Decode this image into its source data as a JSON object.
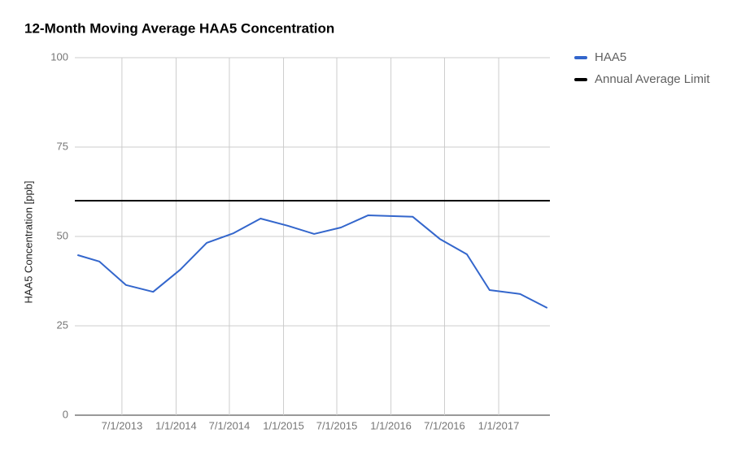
{
  "chart_data": {
    "type": "line",
    "title": "12-Month Moving Average HAA5 Concentration",
    "y_label": "HAA5 Concentration [ppb]",
    "x": [
      "1/31/2013",
      "4/15/2013",
      "7/15/2013",
      "10/15/2013",
      "1/15/2014",
      "4/15/2014",
      "7/15/2014",
      "10/15/2014",
      "1/15/2015",
      "4/15/2015",
      "7/15/2015",
      "10/15/2015",
      "3/15/2016",
      "6/15/2016",
      "9/15/2016",
      "12/1/2016",
      "3/15/2017",
      "6/15/2017"
    ],
    "series": [
      {
        "name": "HAA5",
        "color": "#3366cc",
        "values": [
          44.8,
          43.0,
          36.4,
          34.5,
          40.7,
          48.2,
          50.9,
          55.0,
          53.0,
          50.7,
          52.5,
          55.9,
          55.5,
          49.3,
          45.0,
          35.0,
          33.9,
          30.0
        ]
      }
    ],
    "limit": {
      "name": "Annual Average Limit",
      "color": "#000000",
      "value": 60
    },
    "xlim": [
      "1/22/2013",
      "6/24/2017"
    ],
    "xticks": [
      "7/1/2013",
      "1/1/2014",
      "7/1/2014",
      "1/1/2015",
      "7/1/2015",
      "1/1/2016",
      "7/1/2016",
      "1/1/2017"
    ],
    "ylim": [
      0,
      100
    ],
    "yticks": [
      0,
      25,
      50,
      75,
      100
    ],
    "grid": true,
    "legend": "right"
  }
}
